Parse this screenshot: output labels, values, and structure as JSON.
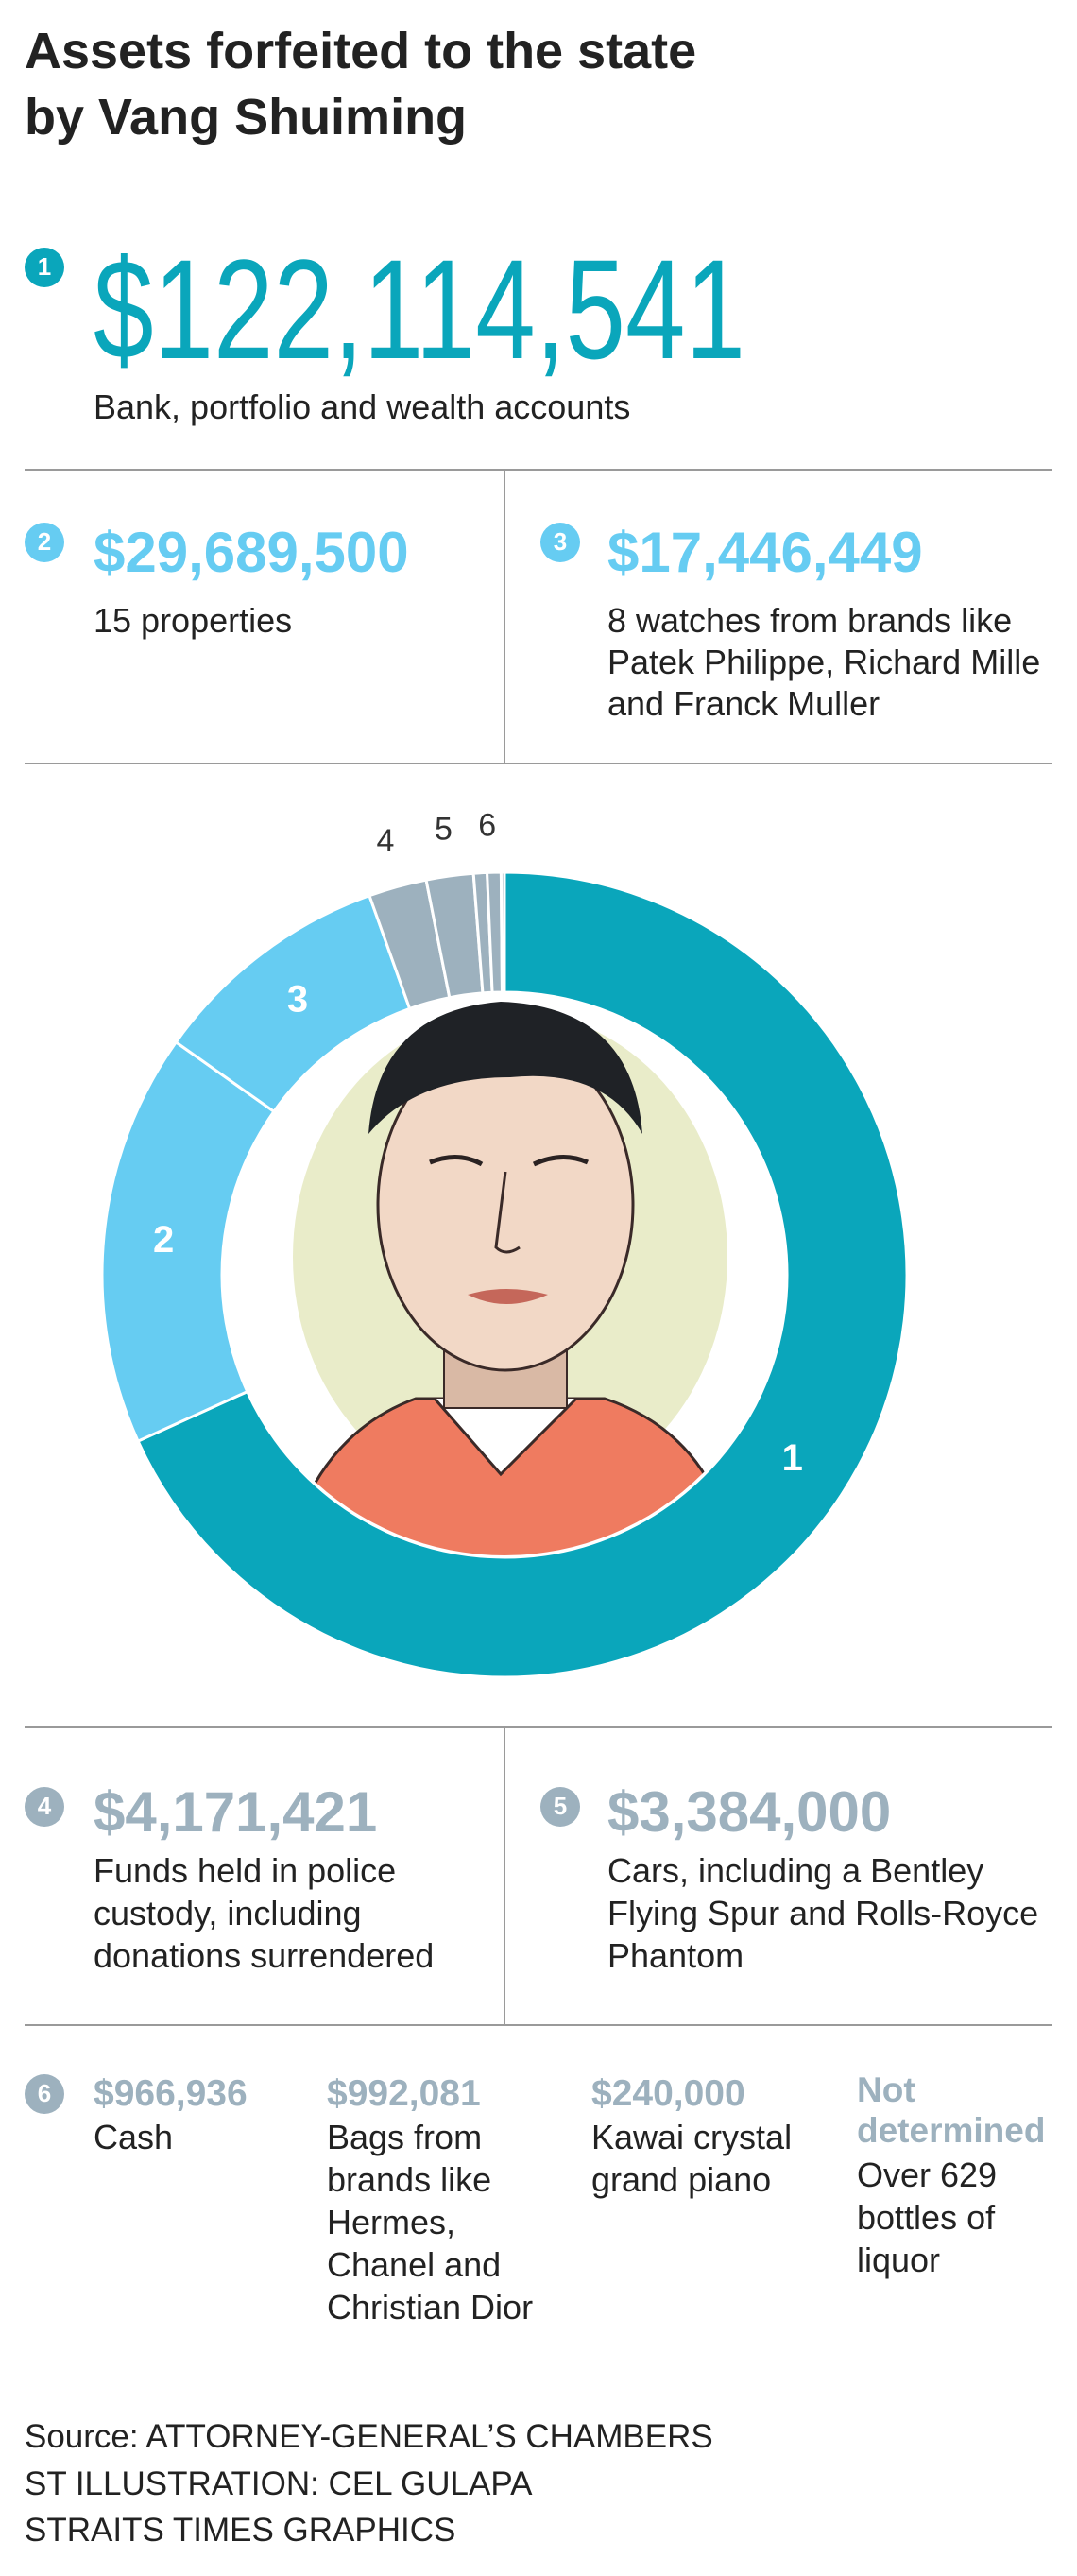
{
  "chart_data": {
    "type": "donut",
    "title": [
      "Assets forfeited to the state",
      "by Vang Shuiming"
    ],
    "categories": [
      "1",
      "2",
      "3",
      "4",
      "5",
      "6",
      null,
      null,
      null
    ],
    "values": [
      122114541,
      29689500,
      17446449,
      4171421,
      3384000,
      966936,
      992081,
      240000,
      null
    ],
    "value_labels": [
      "$122,114,541",
      "$29,689,500",
      "$17,446,449",
      "$4,171,421",
      "$3,384,000",
      "$966,936",
      "$992,081",
      "$240,000",
      "Not determined"
    ],
    "descriptions": [
      [
        "Bank, portfolio and wealth accounts"
      ],
      [
        "15 properties"
      ],
      [
        "8 watches from brands like",
        "Patek Philippe, Richard Mille",
        "and Franck Muller"
      ],
      [
        "Funds held in police",
        "custody, including",
        "donations surrendered"
      ],
      [
        "Cars, including a Bentley",
        "Flying Spur and Rolls-Royce",
        "Phantom"
      ],
      [
        "Cash"
      ],
      [
        "Bags from",
        "brands like",
        "Hermes,",
        "Chanel and",
        "Christian Dior"
      ],
      [
        "Kawai crystal",
        "grand piano"
      ],
      [
        "Over 629",
        "bottles of",
        "liquor"
      ]
    ],
    "colors": [
      "#0aa6bb",
      "#66ccf2",
      "#66ccf2",
      "#9db1be",
      "#9db1be",
      "#9db1be",
      "#9db1be",
      "#9db1be",
      "#9db1be"
    ],
    "source": [
      "Source: ATTORNEY-GENERAL’S CHAMBERS",
      "ST ILLUSTRATION: CEL GULAPA",
      "STRAITS TIMES GRAPHICS"
    ]
  }
}
